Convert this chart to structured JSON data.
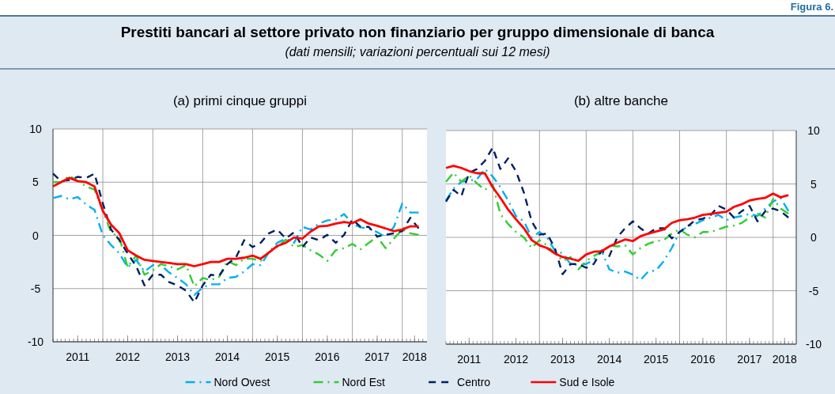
{
  "chart_data": [
    {
      "type": "line",
      "title": "(a) primi cinque gruppi",
      "annotations": [
        "Prestiti bancari al settore privato non finanziario per gruppo dimensionale di banca",
        "(dati mensili; variazioni percentuali sui 12 mesi)",
        "Figura 6."
      ],
      "x": [
        "2011-01",
        "2011-03",
        "2011-05",
        "2011-07",
        "2011-09",
        "2011-11",
        "2012-01",
        "2012-03",
        "2012-05",
        "2012-07",
        "2012-09",
        "2012-11",
        "2013-01",
        "2013-03",
        "2013-05",
        "2013-07",
        "2013-09",
        "2013-11",
        "2014-01",
        "2014-03",
        "2014-05",
        "2014-07",
        "2014-09",
        "2014-11",
        "2015-01",
        "2015-03",
        "2015-05",
        "2015-07",
        "2015-09",
        "2015-11",
        "2016-01",
        "2016-03",
        "2016-05",
        "2016-07",
        "2016-09",
        "2016-11",
        "2017-01",
        "2017-03",
        "2017-05",
        "2017-07",
        "2017-09",
        "2017-11",
        "2018-01",
        "2018-03",
        "2018-05"
      ],
      "xlim": [
        "2011-01",
        "2018-07"
      ],
      "xticks": [
        {
          "value": "2011-07",
          "label": "2011"
        },
        {
          "value": "2012-01",
          "label": null
        },
        {
          "value": "2012-07",
          "label": "2012"
        },
        {
          "value": "2013-01",
          "label": null
        },
        {
          "value": "2013-07",
          "label": "2013"
        },
        {
          "value": "2014-01",
          "label": null
        },
        {
          "value": "2014-07",
          "label": "2014"
        },
        {
          "value": "2015-01",
          "label": null
        },
        {
          "value": "2015-07",
          "label": "2015"
        },
        {
          "value": "2016-01",
          "label": null
        },
        {
          "value": "2016-07",
          "label": "2016"
        },
        {
          "value": "2017-01",
          "label": null
        },
        {
          "value": "2017-07",
          "label": "2017"
        },
        {
          "value": "2018-01",
          "label": null
        },
        {
          "value": "2018-04",
          "label": "2018"
        }
      ],
      "ylim": [
        -10,
        10
      ],
      "yticks": [
        -10,
        -5,
        0,
        5,
        10
      ],
      "grid": true,
      "legend": "bottom",
      "series": [
        {
          "name": "Nord Ovest",
          "color": "#00b0f0",
          "line_style": "dashdot",
          "values": [
            3.5,
            3.7,
            3.4,
            3.6,
            2.9,
            2.4,
            0.0,
            -0.9,
            -1.7,
            -3.0,
            -2.3,
            -3.4,
            -2.8,
            -2.8,
            -3.5,
            -4.0,
            -4.6,
            -5.6,
            -4.9,
            -4.6,
            -4.6,
            -4.0,
            -3.9,
            -3.4,
            -2.7,
            -2.8,
            -1.6,
            -0.7,
            -0.3,
            -0.7,
            0.8,
            0.55,
            1.1,
            1.4,
            1.5,
            2.0,
            1.1,
            0.75,
            0.65,
            0.3,
            -0.15,
            0.8,
            3.0,
            2.15,
            2.15
          ]
        },
        {
          "name": "Nord Est",
          "color": "#33cc33",
          "line_style": "dashdot",
          "values": [
            5.0,
            5.0,
            5.6,
            5.1,
            4.6,
            4.3,
            2.3,
            0.3,
            -0.2,
            -3.0,
            -1.9,
            -3.7,
            -3.3,
            -2.7,
            -2.9,
            -3.2,
            -2.8,
            -4.8,
            -4.0,
            -4.2,
            -3.9,
            -2.4,
            -2.8,
            -2.2,
            -2.2,
            -2.4,
            -1.6,
            -1.1,
            -0.4,
            -1.1,
            -0.9,
            -1.4,
            -1.8,
            -2.4,
            -1.4,
            -1.2,
            -0.8,
            -1.3,
            -0.7,
            -0.15,
            -1.2,
            -0.3,
            0.55,
            0.2,
            0.05
          ]
        },
        {
          "name": "Centro",
          "color": "#002060",
          "line_style": "dashed",
          "values": [
            5.8,
            5.1,
            5.2,
            5.5,
            5.4,
            5.8,
            3.0,
            0.55,
            -0.45,
            -1.7,
            -2.9,
            -4.7,
            -3.7,
            -3.7,
            -4.4,
            -4.7,
            -5.2,
            -6.3,
            -4.7,
            -3.7,
            -3.8,
            -2.7,
            -2.1,
            -0.45,
            -1.1,
            -0.7,
            0.2,
            0.55,
            -0.3,
            0.3,
            -1.1,
            -0.2,
            -0.45,
            0.05,
            -0.7,
            0.05,
            1.5,
            0.8,
            0.8,
            -0.1,
            0.05,
            0.2,
            0.4,
            1.65,
            0.65
          ]
        },
        {
          "name": "Sud e Isole",
          "color": "#ff0000",
          "line_style": "solid",
          "values": [
            4.6,
            5.0,
            5.4,
            5.1,
            5.0,
            4.6,
            2.3,
            1.0,
            0.2,
            -1.4,
            -1.9,
            -2.3,
            -2.4,
            -2.5,
            -2.6,
            -2.7,
            -2.7,
            -2.9,
            -2.7,
            -2.5,
            -2.5,
            -2.2,
            -2.2,
            -2.1,
            -1.9,
            -2.2,
            -1.6,
            -1.0,
            -0.7,
            -0.2,
            -0.3,
            0.35,
            0.85,
            0.9,
            1.1,
            1.25,
            1.15,
            1.5,
            1.1,
            0.9,
            0.65,
            0.4,
            0.55,
            0.85,
            0.85
          ]
        }
      ]
    },
    {
      "type": "line",
      "title": "(b) altre banche",
      "x": [
        "2011-01",
        "2011-03",
        "2011-05",
        "2011-07",
        "2011-09",
        "2011-11",
        "2012-01",
        "2012-03",
        "2012-05",
        "2012-07",
        "2012-09",
        "2012-11",
        "2013-01",
        "2013-03",
        "2013-05",
        "2013-07",
        "2013-09",
        "2013-11",
        "2014-01",
        "2014-03",
        "2014-05",
        "2014-07",
        "2014-09",
        "2014-11",
        "2015-01",
        "2015-03",
        "2015-05",
        "2015-07",
        "2015-09",
        "2015-11",
        "2016-01",
        "2016-03",
        "2016-05",
        "2016-07",
        "2016-09",
        "2016-11",
        "2017-01",
        "2017-03",
        "2017-05",
        "2017-07",
        "2017-09",
        "2017-11",
        "2018-01",
        "2018-03",
        "2018-05"
      ],
      "xlim": [
        "2011-01",
        "2018-07"
      ],
      "xticks": [
        {
          "value": "2011-07",
          "label": "2011"
        },
        {
          "value": "2012-01",
          "label": null
        },
        {
          "value": "2012-07",
          "label": "2012"
        },
        {
          "value": "2013-01",
          "label": null
        },
        {
          "value": "2013-07",
          "label": "2013"
        },
        {
          "value": "2014-01",
          "label": null
        },
        {
          "value": "2014-07",
          "label": "2014"
        },
        {
          "value": "2015-01",
          "label": null
        },
        {
          "value": "2015-07",
          "label": "2015"
        },
        {
          "value": "2016-01",
          "label": null
        },
        {
          "value": "2016-07",
          "label": "2016"
        },
        {
          "value": "2017-01",
          "label": null
        },
        {
          "value": "2017-07",
          "label": "2017"
        },
        {
          "value": "2018-01",
          "label": null
        },
        {
          "value": "2018-04",
          "label": "2018"
        }
      ],
      "y2lim": [
        -10,
        10
      ],
      "y2ticks": [
        -10,
        -5,
        0,
        5,
        10
      ],
      "grid": true,
      "series": [
        {
          "color": "#00b0f0",
          "line_style": "dashdot",
          "axis": "y2",
          "values": [
            3.45,
            4.55,
            5.2,
            5.3,
            5.45,
            6.4,
            5.7,
            4.7,
            3.45,
            2.0,
            1.5,
            0,
            0.5,
            0,
            -1.25,
            -1.5,
            -2.5,
            -2.6,
            -2.5,
            -2.1,
            -1.25,
            -3.0,
            -3.3,
            -3.2,
            -3.5,
            -4.0,
            -3.2,
            -3.1,
            -2.2,
            -1.0,
            0.5,
            1.0,
            1.25,
            1.6,
            1.85,
            2.1,
            1.6,
            1.85,
            2.0,
            2.2,
            2.0,
            2.7,
            3.35,
            3.7,
            2.45
          ]
        },
        {
          "color": "#33cc33",
          "line_style": "dashdot",
          "axis": "y2",
          "values": [
            5.2,
            6.05,
            5.2,
            5.8,
            5.05,
            4.45,
            4.95,
            2.2,
            1.25,
            0.5,
            0,
            -1.0,
            -0.25,
            -0.75,
            -1.5,
            -2.2,
            -1.85,
            -3.0,
            -2.2,
            -1.75,
            -1.35,
            -0.75,
            -0.85,
            -0.75,
            -1.6,
            -1.0,
            -0.6,
            -0.35,
            -0.25,
            0.35,
            0.75,
            0.25,
            0,
            0.5,
            0.5,
            0.75,
            1.0,
            1.1,
            1.35,
            1.85,
            2.2,
            1.85,
            3.6,
            2.7,
            2.2
          ]
        },
        {
          "color": "#002060",
          "line_style": "dashed",
          "axis": "y2",
          "values": [
            3.35,
            4.45,
            3.85,
            6.05,
            6.4,
            7.15,
            8.4,
            6.4,
            7.4,
            6.2,
            4.2,
            1.5,
            0.25,
            0.35,
            -1.0,
            -3.45,
            -2.5,
            -2.5,
            -2.85,
            -2.5,
            -1.25,
            -1.75,
            0,
            0.85,
            1.5,
            0.85,
            0.35,
            0.85,
            0.85,
            -0.1,
            0.5,
            1.0,
            1.6,
            1.75,
            2.1,
            2.95,
            2.6,
            1.85,
            2.45,
            2.95,
            1.5,
            2.45,
            2.7,
            2.45,
            1.85
          ]
        },
        {
          "color": "#ff0000",
          "line_style": "solid",
          "axis": "y2",
          "values": [
            6.5,
            6.7,
            6.5,
            6.2,
            6.0,
            6.0,
            4.7,
            3.7,
            2.6,
            1.7,
            0.85,
            -0.25,
            -0.75,
            -1.0,
            -1.5,
            -1.85,
            -2.0,
            -2.2,
            -1.6,
            -1.35,
            -1.3,
            -0.85,
            -0.5,
            -0.2,
            -0.35,
            0.1,
            0.35,
            0.55,
            0.75,
            1.35,
            1.6,
            1.7,
            1.85,
            2.1,
            2.2,
            2.3,
            2.4,
            2.85,
            3.1,
            3.45,
            3.6,
            3.7,
            4.1,
            3.75,
            3.95
          ]
        }
      ]
    }
  ]
}
